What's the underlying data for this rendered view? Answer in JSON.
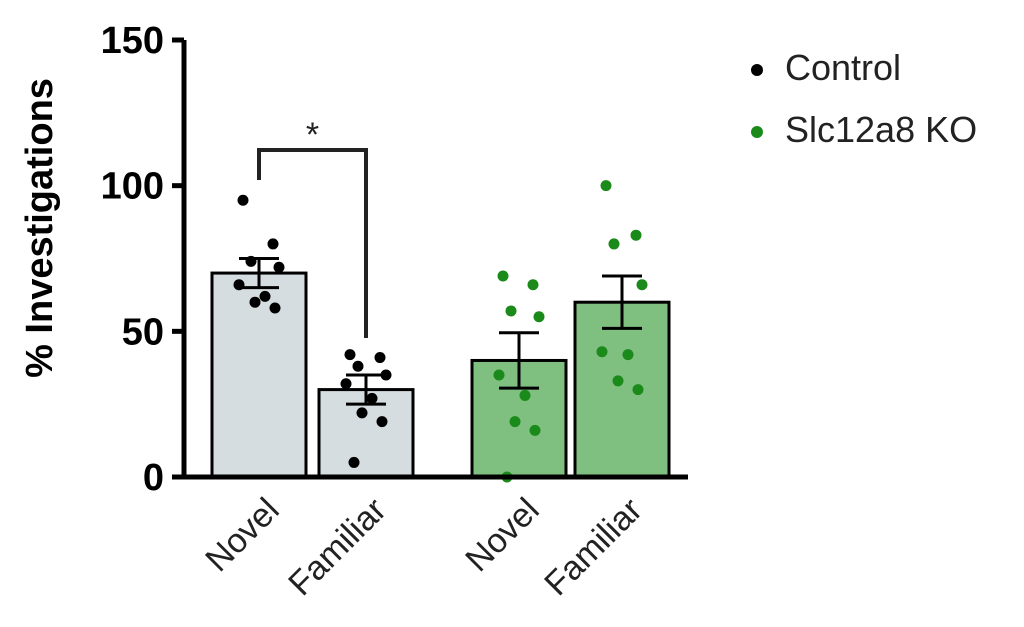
{
  "chart_data": {
    "type": "bar",
    "title": "",
    "xlabel": "",
    "ylabel": "% Investigations",
    "ylim": [
      0,
      150
    ],
    "yticks": [
      0,
      50,
      100,
      150
    ],
    "grid": false,
    "legend_position": "top-right",
    "categories": [
      "Novel",
      "Familiar",
      "Novel",
      "Familiar"
    ],
    "groups": [
      {
        "name": "Control",
        "color": "#000000",
        "bar_color": "#d6dde0",
        "point_color": "#000000",
        "categories": [
          0,
          1
        ]
      },
      {
        "name": "Slc12a8 KO",
        "color": "#1a8a1a",
        "bar_color": "#7fbf7f",
        "point_color": "#1a8a1a",
        "categories": [
          2,
          3
        ]
      }
    ],
    "bars": [
      {
        "category": "Novel",
        "group": "Control",
        "mean": 70,
        "sem": 5,
        "points": [
          95,
          80,
          74,
          72,
          66,
          62,
          60,
          58
        ]
      },
      {
        "category": "Familiar",
        "group": "Control",
        "mean": 30,
        "sem": 5,
        "points": [
          42,
          41,
          38,
          35,
          32,
          27,
          22,
          19,
          5
        ]
      },
      {
        "category": "Novel",
        "group": "Slc12a8 KO",
        "mean": 40,
        "sem": 9.5,
        "points": [
          69,
          66,
          57,
          55,
          35,
          28,
          19,
          16,
          0
        ]
      },
      {
        "category": "Familiar",
        "group": "Slc12a8 KO",
        "mean": 60,
        "sem": 9,
        "points": [
          100,
          83,
          80,
          66,
          43,
          42,
          33,
          30
        ]
      }
    ],
    "annotations": [
      {
        "text": "*",
        "between": [
          0,
          1
        ]
      }
    ]
  }
}
